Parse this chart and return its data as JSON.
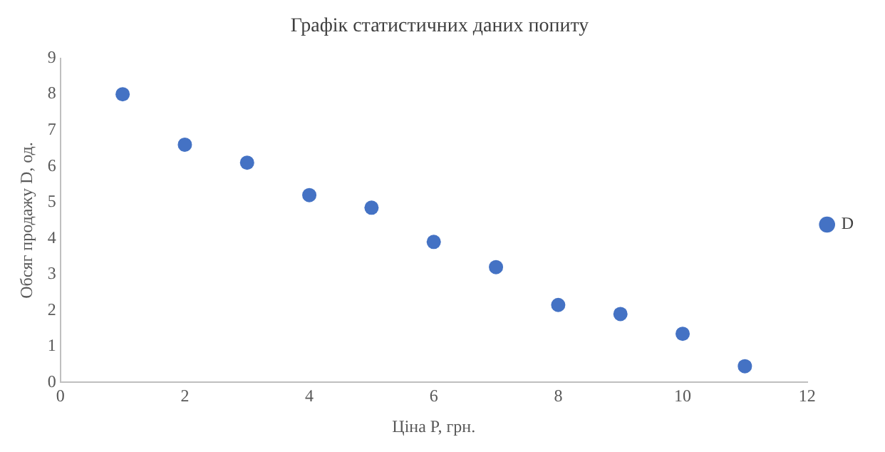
{
  "chart_data": {
    "type": "scatter",
    "title": "Графік статистичних даних попиту",
    "xlabel": "Ціна P, грн.",
    "ylabel": "Обсяг продажу D, од.",
    "x": [
      1,
      2,
      3,
      4,
      5,
      6,
      7,
      8,
      9,
      10,
      11
    ],
    "series": [
      {
        "name": "D",
        "color": "#4472c4",
        "values": [
          8.0,
          6.6,
          6.1,
          5.2,
          4.85,
          3.9,
          3.2,
          2.15,
          1.9,
          1.35,
          0.45
        ]
      }
    ],
    "xlim": [
      0,
      12
    ],
    "xticks": [
      0,
      2,
      4,
      6,
      8,
      10,
      12
    ],
    "ylim": [
      0,
      9
    ],
    "yticks": [
      0,
      1,
      2,
      3,
      4,
      5,
      6,
      7,
      8,
      9
    ],
    "grid": false,
    "legend": "right",
    "marker": "circle"
  }
}
